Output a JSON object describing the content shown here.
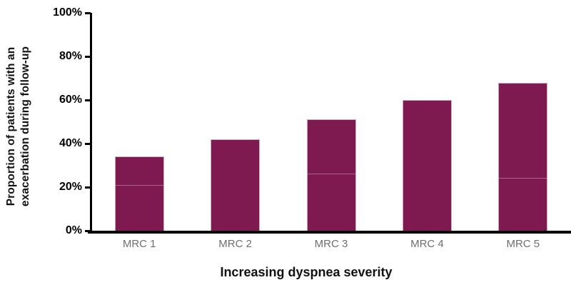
{
  "chart_data": {
    "type": "bar",
    "title": "",
    "categories": [
      "MRC 1",
      "MRC 2",
      "MRC 3",
      "MRC 4",
      "MRC 5"
    ],
    "values": [
      34,
      42,
      51,
      60,
      68
    ],
    "xlabel": "Increasing dyspnea severity",
    "ylabel": "Proportion of patients with an\nexacerbation during follow-up",
    "ylim": [
      0,
      100
    ],
    "y_ticks": [
      {
        "label": "100%",
        "value": 100
      },
      {
        "label": "80%",
        "value": 80
      },
      {
        "label": "60%",
        "value": 60
      },
      {
        "label": "40%",
        "value": 40
      },
      {
        "label": "20%",
        "value": 20
      },
      {
        "label": "0%",
        "value": 0
      }
    ],
    "grid": false,
    "legend": false,
    "bar_inner_line_pcts": [
      21,
      null,
      26,
      null,
      24
    ],
    "colors": {
      "background": "#FFFFFF",
      "bar_fill": "#7E1A50",
      "bar_border": "#D3A9C2",
      "bar_inner_line": "#B07A96",
      "axis": "#000000",
      "axis_title": "#111111",
      "y_tick_label": "#000000",
      "x_tick_label": "#6E6E6E"
    }
  }
}
